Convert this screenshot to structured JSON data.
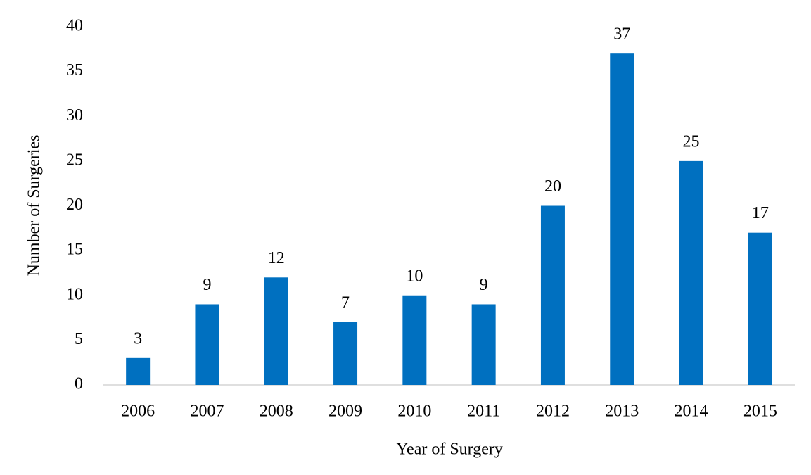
{
  "chart_data": {
    "type": "bar",
    "categories": [
      "2006",
      "2007",
      "2008",
      "2009",
      "2010",
      "2011",
      "2012",
      "2013",
      "2014",
      "2015"
    ],
    "values": [
      3,
      9,
      12,
      7,
      10,
      9,
      20,
      37,
      25,
      17
    ],
    "color": "#0070c0",
    "x_label": "Year of Surgery",
    "y_label": "Number of Surgeries",
    "ylim": [
      0,
      40
    ],
    "yticks": [
      0,
      5,
      10,
      15,
      20,
      25,
      30,
      35,
      40
    ],
    "grid": false
  }
}
